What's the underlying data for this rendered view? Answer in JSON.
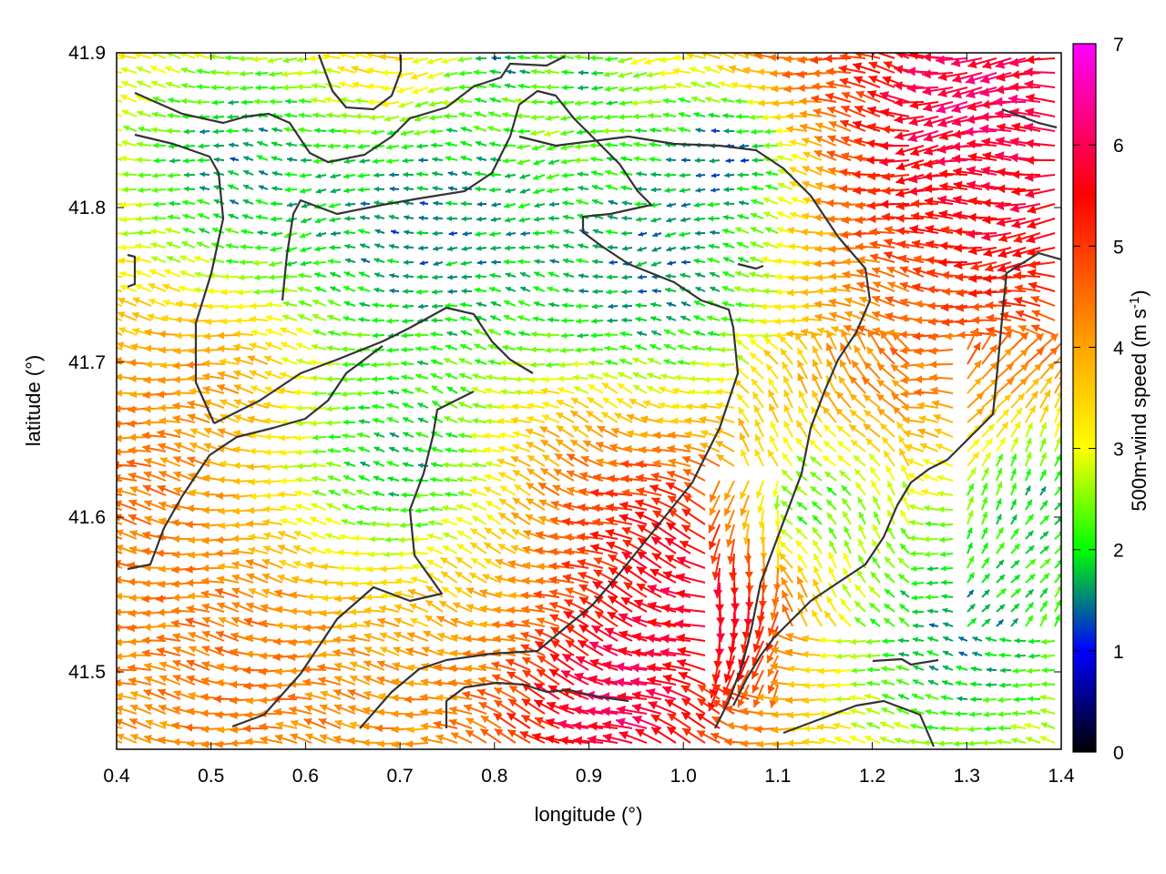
{
  "chart_data": {
    "type": "vector-field",
    "xlabel": "longitude (°)",
    "ylabel": "latitude (°)",
    "xlim": [
      0.4,
      1.4
    ],
    "ylim": [
      41.45,
      41.9
    ],
    "xticks": [
      "0.4",
      "0.5",
      "0.6",
      "0.7",
      "0.8",
      "0.9",
      "1.0",
      "1.1",
      "1.2",
      "1.3",
      "1.4"
    ],
    "yticks": [
      "41.5",
      "41.6",
      "41.7",
      "41.8",
      "41.9"
    ],
    "colorbar": {
      "label_main": "500m-wind speed (m s",
      "label_sup": "-1",
      "label_end": ")",
      "range": [
        0,
        7
      ],
      "ticks": [
        "0",
        "1",
        "2",
        "3",
        "4",
        "5",
        "6",
        "7"
      ]
    },
    "colormap": [
      "#000000",
      "#0000ff",
      "#00ff00",
      "#ffff00",
      "#ffa500",
      "#ff0000",
      "#ff00ff"
    ],
    "grid": false,
    "field_description": "Dense wind arrows, mostly westward flow; strongest winds (6-7 m/s) in northeast corner and central band; weak winds (0-2 m/s) in north-central valleys and southeast",
    "coastline_color": "#333333"
  }
}
